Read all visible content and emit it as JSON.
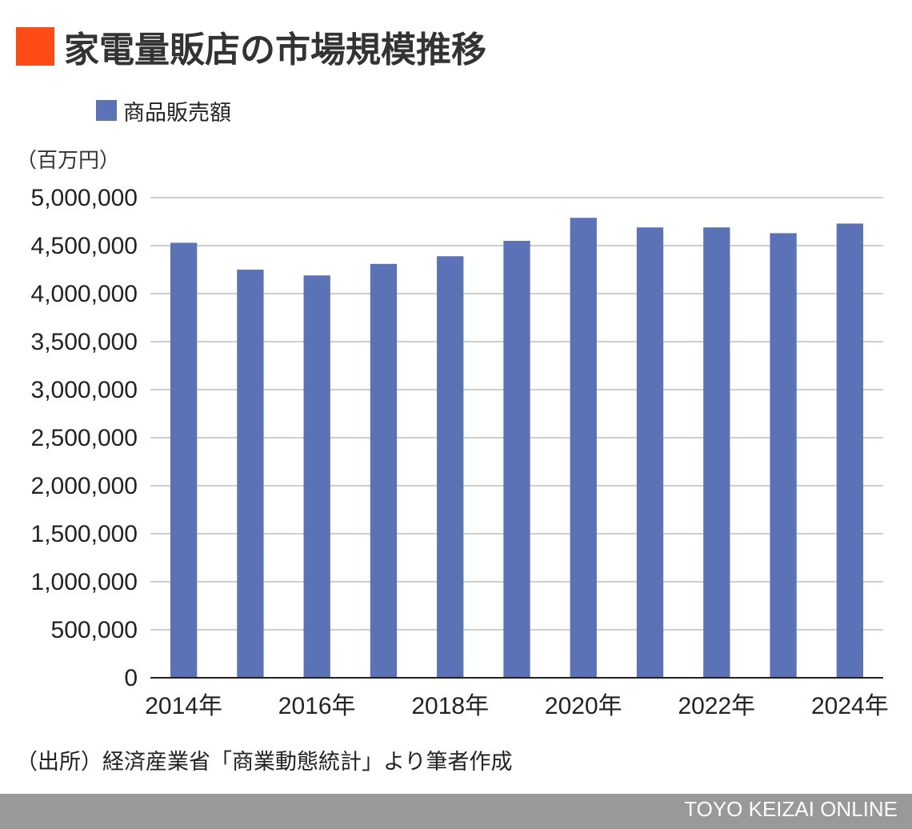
{
  "title": "家電量販店の市場規模推移",
  "legend_label": "商品販売額",
  "unit_label": "（百万円）",
  "source_note": "（出所）経済産業省「商業動態統計」より筆者作成",
  "footer_brand": "TOYO KEIZAI ONLINE",
  "colors": {
    "title_marker": "#FC4B14",
    "bar": "#5B73B6",
    "grid": "#BDBDBD",
    "axis": "#222222",
    "footer_bg": "#999999"
  },
  "chart_data": {
    "type": "bar",
    "title": "家電量販店の市場規模推移",
    "ylabel": "（百万円）",
    "xlabel": "",
    "ylim": [
      0,
      5000000
    ],
    "yticks": [
      0,
      500000,
      1000000,
      1500000,
      2000000,
      2500000,
      3000000,
      3500000,
      4000000,
      4500000,
      5000000
    ],
    "ytick_labels": [
      "0",
      "500,000",
      "1,000,000",
      "1,500,000",
      "2,000,000",
      "2,500,000",
      "3,000,000",
      "3,500,000",
      "4,000,000",
      "4,500,000",
      "5,000,000"
    ],
    "categories": [
      "2014年",
      "2015年",
      "2016年",
      "2017年",
      "2018年",
      "2019年",
      "2020年",
      "2021年",
      "2022年",
      "2023年",
      "2024年"
    ],
    "shown_xtick_labels": [
      "2014年",
      "2016年",
      "2018年",
      "2020年",
      "2022年",
      "2024年"
    ],
    "series": [
      {
        "name": "商品販売額",
        "values": [
          4530000,
          4250000,
          4190000,
          4310000,
          4390000,
          4550000,
          4790000,
          4690000,
          4690000,
          4630000,
          4730000
        ]
      }
    ],
    "grid": true,
    "legend_position": "top-left"
  }
}
